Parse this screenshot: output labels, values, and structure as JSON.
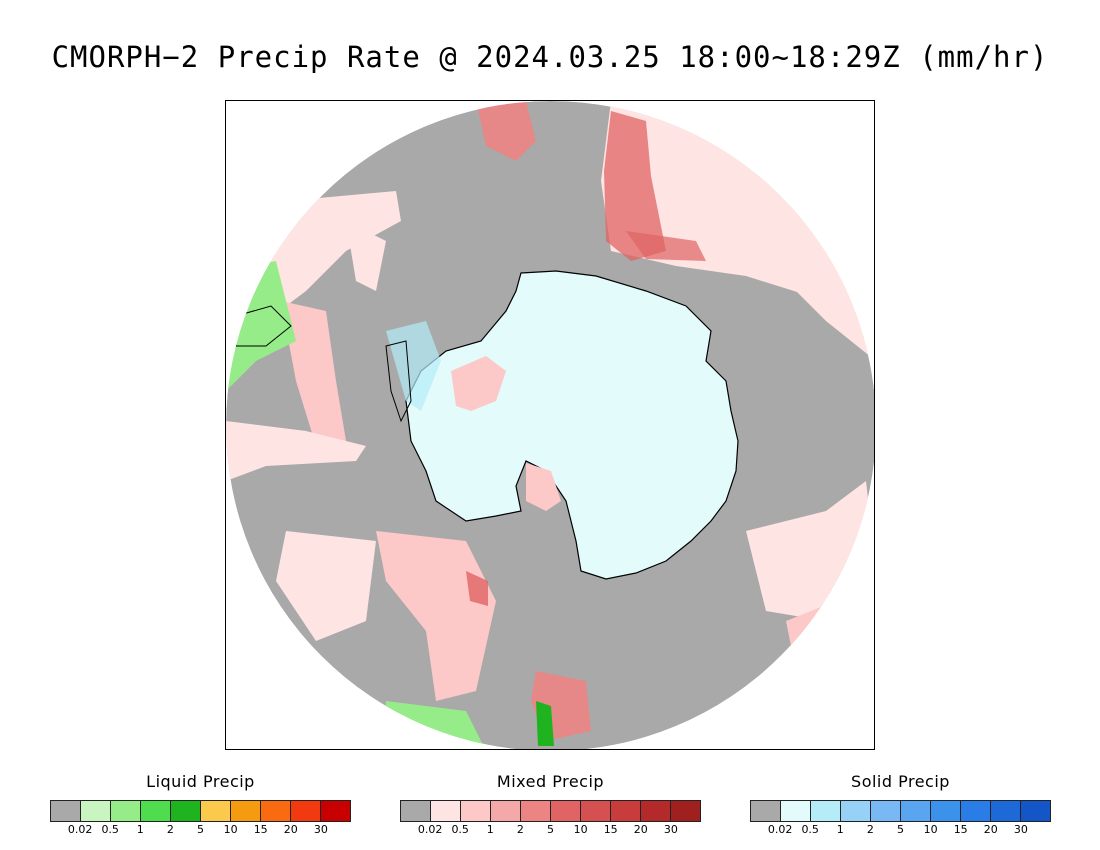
{
  "title": "CMORPH−2 Precip Rate @ 2024.03.25 18:00~18:29Z (mm/hr)",
  "map": {
    "projection": "south polar stereographic",
    "ocean_color": "#a9a9a9",
    "antarctica_color": "#e4fbfc",
    "coastline_color": "#000000",
    "background_color": "#ffffff"
  },
  "legends": [
    {
      "title": "Liquid Precip",
      "colors": [
        "#a9a9a9",
        "#c8f5c0",
        "#96ec88",
        "#4fdc4f",
        "#1fb41f",
        "#fbc94b",
        "#f59b10",
        "#f86b10",
        "#f23a10",
        "#c80000"
      ],
      "ticks": [
        "0.02",
        "0.5",
        "1",
        "2",
        "5",
        "10",
        "15",
        "20",
        "30"
      ]
    },
    {
      "title": "Mixed Precip",
      "colors": [
        "#a9a9a9",
        "#ffe4e4",
        "#fcc8c8",
        "#f5a8a8",
        "#ec8484",
        "#e06464",
        "#d55050",
        "#c83c3c",
        "#b42a2a",
        "#a02020"
      ],
      "ticks": [
        "0.02",
        "0.5",
        "1",
        "2",
        "5",
        "10",
        "15",
        "20",
        "30"
      ]
    },
    {
      "title": "Solid Precip",
      "colors": [
        "#a9a9a9",
        "#e4fbfc",
        "#b4ecf8",
        "#96d2f8",
        "#78b9f5",
        "#5aa5f0",
        "#3c91eb",
        "#2a7de6",
        "#1e69d8",
        "#1455c8"
      ],
      "ticks": [
        "0.02",
        "0.5",
        "1",
        "2",
        "5",
        "10",
        "15",
        "20",
        "30"
      ]
    }
  ]
}
